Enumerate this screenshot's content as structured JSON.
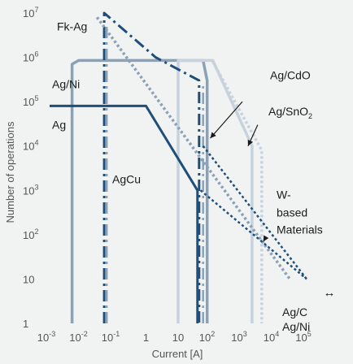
{
  "chart_data": {
    "type": "line",
    "title": "",
    "xlabel": "Current [A]",
    "ylabel": "Number of operations",
    "x_scale": "log",
    "y_scale": "log",
    "xlim": [
      0.001,
      100000
    ],
    "ylim": [
      1,
      10000000
    ],
    "x_ticks": [
      {
        "value": 0.001,
        "label_base": "10",
        "label_exp": "-3"
      },
      {
        "value": 0.01,
        "label_base": "10",
        "label_exp": "-2"
      },
      {
        "value": 0.1,
        "label_base": "10",
        "label_exp": "-1"
      },
      {
        "value": 1,
        "label_base": "1",
        "label_exp": ""
      },
      {
        "value": 10,
        "label_base": "10",
        "label_exp": ""
      },
      {
        "value": 100,
        "label_base": "10",
        "label_exp": "2"
      },
      {
        "value": 1000,
        "label_base": "10",
        "label_exp": "3"
      },
      {
        "value": 10000,
        "label_base": "10",
        "label_exp": "4"
      },
      {
        "value": 100000,
        "label_base": "10",
        "label_exp": "5"
      }
    ],
    "y_ticks": [
      {
        "value": 1,
        "label_base": "1",
        "label_exp": ""
      },
      {
        "value": 10,
        "label_base": "10",
        "label_exp": ""
      },
      {
        "value": 100,
        "label_base": "10",
        "label_exp": "2"
      },
      {
        "value": 1000,
        "label_base": "10",
        "label_exp": "3"
      },
      {
        "value": 10000,
        "label_base": "10",
        "label_exp": "4"
      },
      {
        "value": 100000,
        "label_base": "10",
        "label_exp": "5"
      },
      {
        "value": 1000000,
        "label_base": "10",
        "label_exp": "6"
      },
      {
        "value": 10000000,
        "label_base": "10",
        "label_exp": "7"
      }
    ],
    "grid": false,
    "series": [
      {
        "color": "#8aa2b8",
        "style": "solid",
        "width": 3.5,
        "points": [
          [
            0.005,
            1
          ],
          [
            0.005,
            700000
          ],
          [
            0.008,
            850000
          ],
          [
            60,
            850000
          ],
          [
            80,
            300000
          ],
          [
            80,
            1
          ]
        ]
      },
      {
        "color": "#c7d2dd",
        "style": "solid",
        "width": 3.5,
        "points": [
          [
            10,
            1
          ],
          [
            10,
            850000
          ],
          [
            120,
            850000
          ],
          [
            2000,
            10000
          ],
          [
            2000,
            1
          ]
        ]
      },
      {
        "color": "#1e4e79",
        "style": "solid",
        "width": 3,
        "points": [
          [
            0.001,
            80000
          ],
          [
            1,
            80000
          ],
          [
            40,
            1000
          ],
          [
            40,
            1
          ]
        ]
      },
      {
        "color": "#1e4e79",
        "style": "dashdot",
        "width": 3,
        "points": [
          [
            0.05,
            1
          ],
          [
            0.05,
            10000000
          ],
          [
            2,
            1000000
          ],
          [
            45,
            300000
          ],
          [
            45,
            1
          ]
        ]
      },
      {
        "color": "#8aa2b8",
        "style": "dashdot",
        "width": 2.5,
        "points": [
          [
            0.06,
            1
          ],
          [
            0.06,
            6000000
          ]
        ]
      },
      {
        "color": "#8aa2b8",
        "style": "dashdot",
        "width": 2.5,
        "points": [
          [
            60,
            1
          ],
          [
            60,
            250000
          ]
        ]
      },
      {
        "color": "#8aa2b8",
        "style": "dotted",
        "width": 3.5,
        "points": [
          [
            0.03,
            8000000
          ],
          [
            30000,
            10
          ]
        ]
      },
      {
        "color": "#c7d2dd",
        "style": "dotted",
        "width": 3.5,
        "points": [
          [
            120,
            800000
          ],
          [
            4000,
            8000
          ],
          [
            4000,
            1
          ]
        ]
      },
      {
        "color": "#1e4e79",
        "style": "dotted",
        "width": 2.5,
        "points": [
          [
            60,
            10000
          ],
          [
            100000,
            10
          ]
        ]
      },
      {
        "color": "#1e4e79",
        "style": "dotted",
        "width": 2.5,
        "points": [
          [
            50,
            1000
          ],
          [
            100000,
            10
          ]
        ]
      }
    ],
    "annotations": [
      {
        "text": "Fk-Ag",
        "x": 0.001,
        "y": 5000000
      },
      {
        "text": "Ag/Ni",
        "x": 0.0015,
        "y": 250000
      },
      {
        "text": "Ag",
        "x": 0.0015,
        "y": 30000
      },
      {
        "text": "AgCu",
        "x": 0.22,
        "y": 1800
      },
      {
        "text": "Ag/CdO",
        "x": 1000,
        "y": 400000
      },
      {
        "text": "Ag/SnO",
        "sub": "2",
        "x": 1000,
        "y": 60000
      },
      {
        "text": "W-",
        "x": 5000,
        "y": 800
      },
      {
        "text": "based",
        "x": 5000,
        "y": 320
      },
      {
        "text": "Materials",
        "x": 5000,
        "y": 130
      },
      {
        "text": "Ag/C",
        "x": 5000,
        "y": 1.8
      },
      {
        "text": "Ag/Ni",
        "x": 5000,
        "y": 0.85
      }
    ],
    "arrows": [
      {
        "color": "#1b1b1b",
        "from": [
          1000,
          100000
        ],
        "to": [
          100,
          15000
        ]
      },
      {
        "color": "#1b1b1b",
        "from": [
          3000,
          30000
        ],
        "to": [
          1500,
          10000
        ]
      },
      {
        "color": "#1b1b1b",
        "from": [
          5000,
          80
        ],
        "to": [
          4500,
          70
        ]
      }
    ],
    "legend": {
      "position": "right",
      "symbol": "↔"
    }
  }
}
